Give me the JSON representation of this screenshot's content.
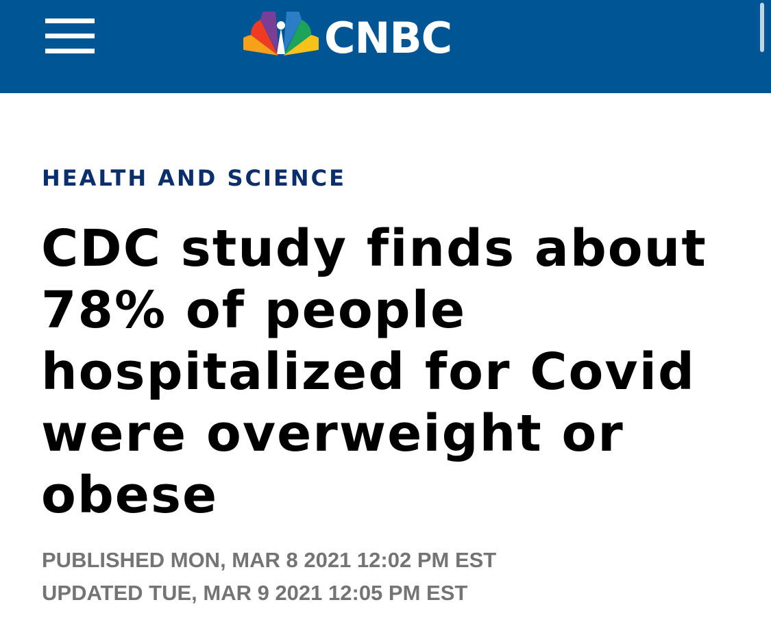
{
  "header": {
    "brand": "CNBC",
    "menu_icon": "hamburger-menu-icon",
    "logo_icon": "nbc-peacock-icon",
    "background_color": "#005594"
  },
  "article": {
    "section": "HEALTH AND SCIENCE",
    "section_color": "#0a2f6b",
    "headline_lines": [
      "CDC study finds about",
      "78% of people",
      "hospitalized for Covid",
      "were overweight or",
      "obese"
    ],
    "published": "PUBLISHED MON, MAR 8 2021 12:02 PM EST",
    "updated": "UPDATED TUE, MAR 9 2021 12:05 PM EST"
  }
}
